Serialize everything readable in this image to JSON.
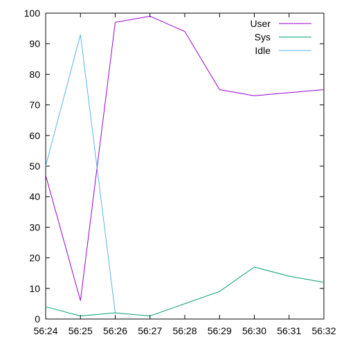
{
  "chart_data": {
    "type": "line",
    "title": "",
    "xlabel": "",
    "ylabel": "",
    "categories": [
      "56:24",
      "56:25",
      "56:26",
      "56:27",
      "56:28",
      "56:29",
      "56:30",
      "56:31",
      "56:32"
    ],
    "ylim": [
      0,
      100
    ],
    "yticks": [
      0,
      10,
      20,
      30,
      40,
      50,
      60,
      70,
      80,
      90,
      100
    ],
    "grid": false,
    "legend_position": "top-right",
    "series": [
      {
        "name": "User",
        "color": "#9400d3",
        "values": [
          47,
          6,
          97,
          99,
          94,
          75,
          73,
          74,
          75
        ]
      },
      {
        "name": "Sys",
        "color": "#009e73",
        "values": [
          4,
          1,
          2,
          1,
          5,
          9,
          17,
          14,
          12
        ]
      },
      {
        "name": "Idle",
        "color": "#56b4e9",
        "values": [
          50,
          93,
          2,
          null,
          null,
          null,
          null,
          null,
          null
        ]
      }
    ]
  }
}
